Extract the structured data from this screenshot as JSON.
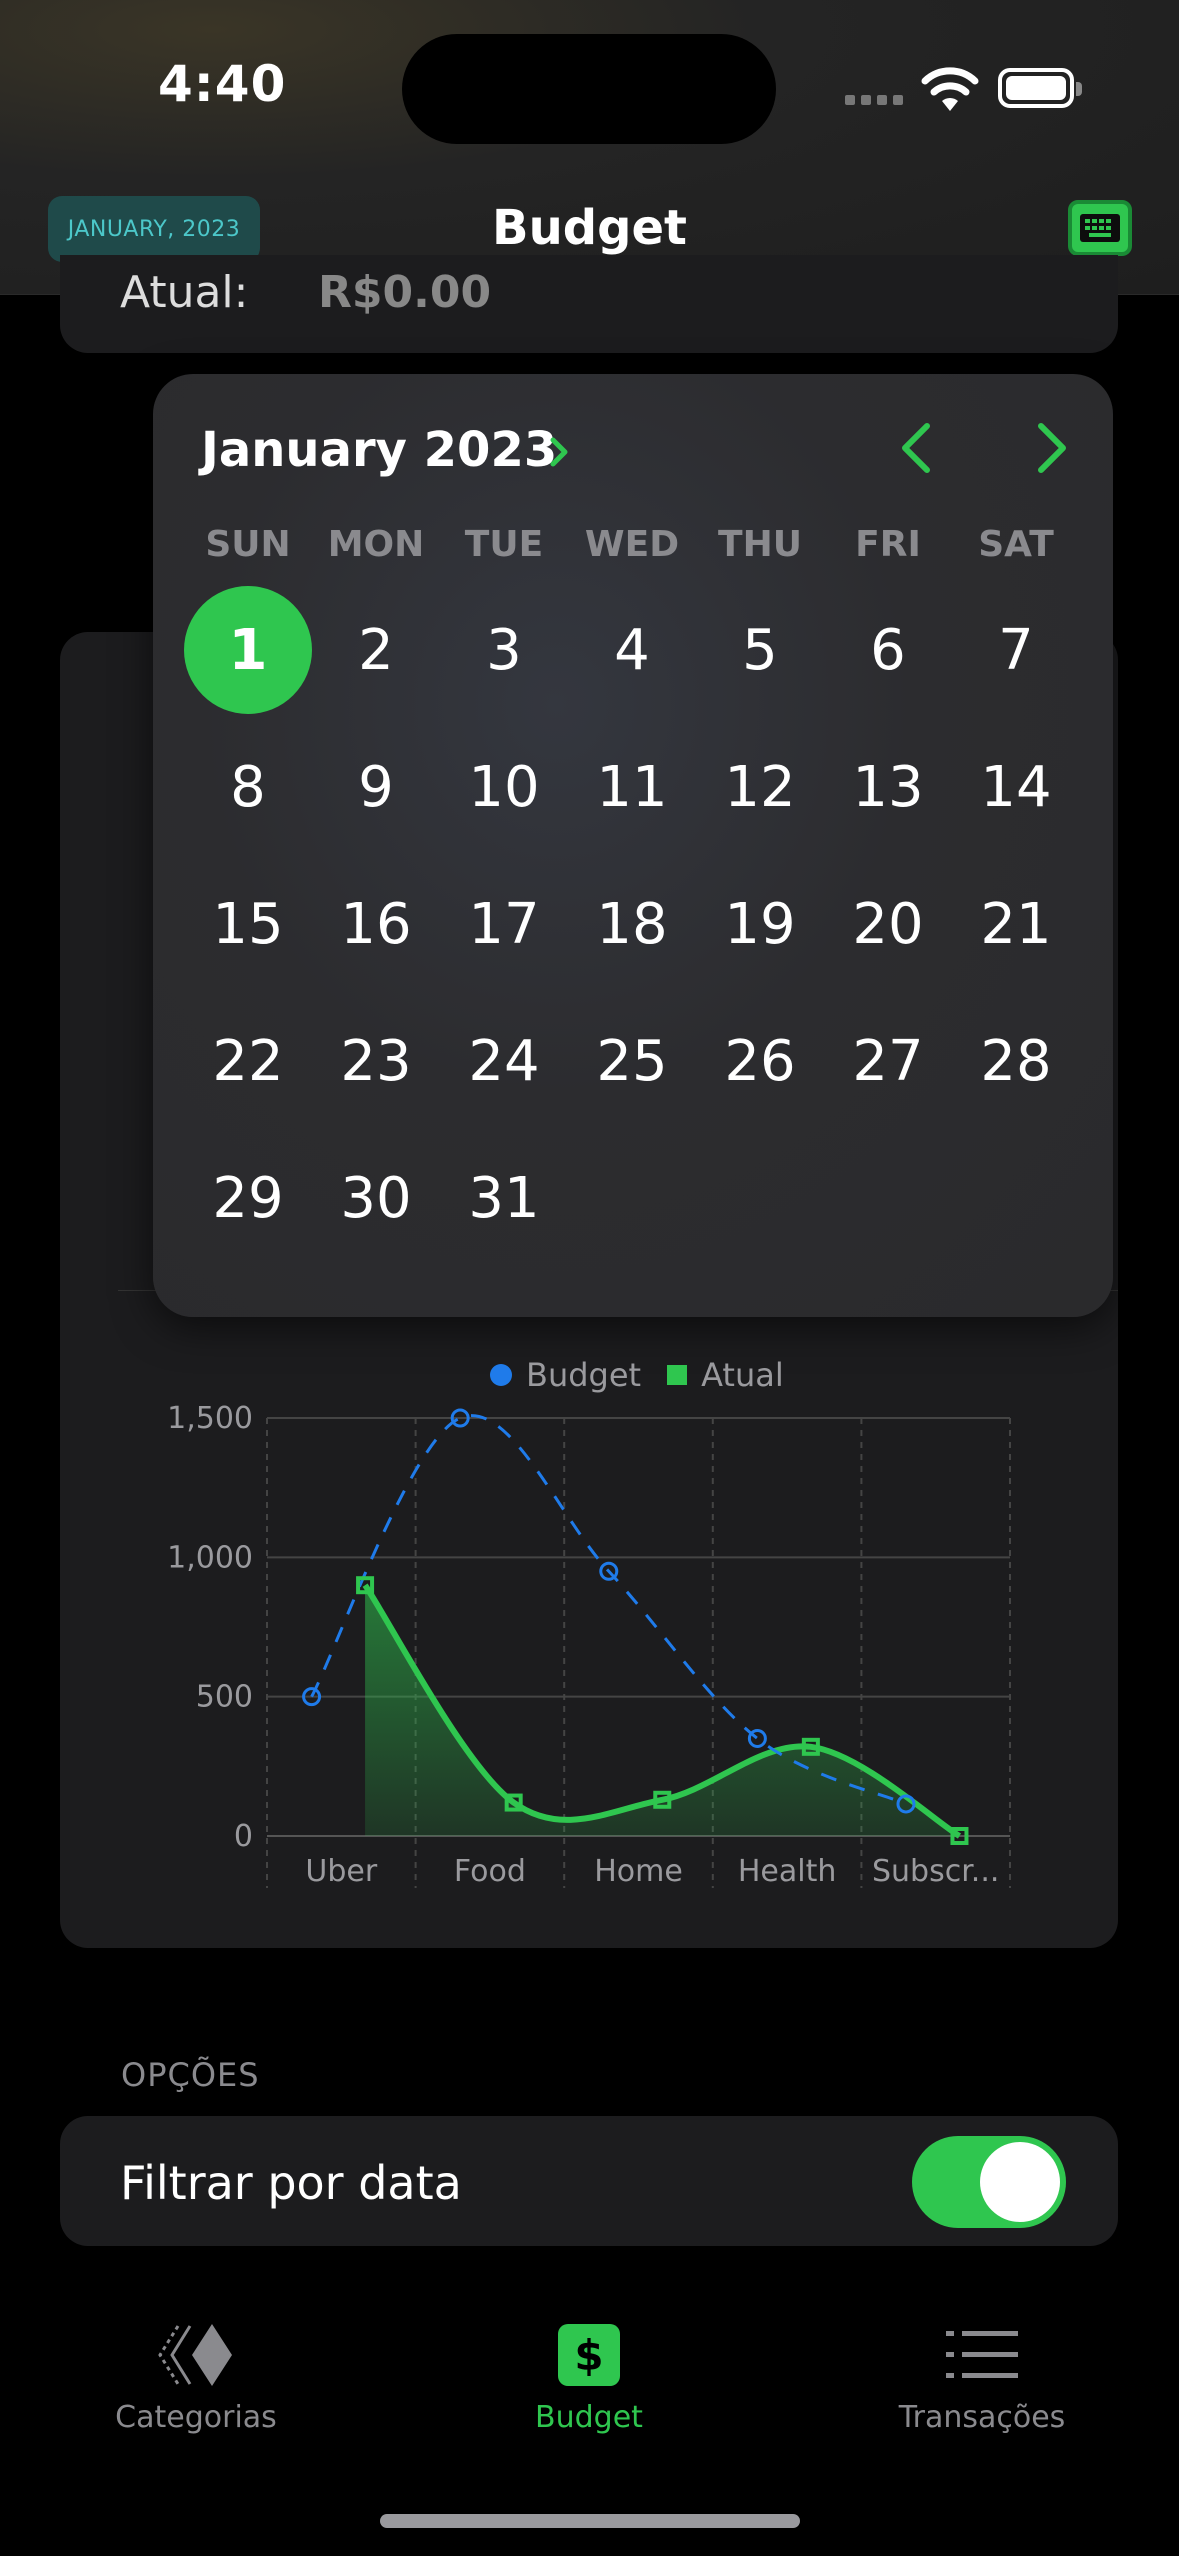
{
  "status_bar": {
    "time": "4:40"
  },
  "header": {
    "date_pill": "JANUARY, 2023",
    "title": "Budget"
  },
  "summary_card": {
    "label": "Atual:",
    "value": "R$0.00"
  },
  "calendar": {
    "month_label": "January 2023",
    "weekdays": [
      "SUN",
      "MON",
      "TUE",
      "WED",
      "THU",
      "FRI",
      "SAT"
    ],
    "selected_day": "1",
    "first_weekday_index": 0,
    "days": [
      "1",
      "2",
      "3",
      "4",
      "5",
      "6",
      "7",
      "8",
      "9",
      "10",
      "11",
      "12",
      "13",
      "14",
      "15",
      "16",
      "17",
      "18",
      "19",
      "20",
      "21",
      "22",
      "23",
      "24",
      "25",
      "26",
      "27",
      "28",
      "29",
      "30",
      "31"
    ]
  },
  "chart_data": {
    "type": "line",
    "categories": [
      "Uber",
      "Food",
      "Home",
      "Health",
      "Subscr..."
    ],
    "y_ticks": [
      "1,500",
      "1,000",
      "500",
      "0"
    ],
    "ylim": [
      0,
      1500
    ],
    "legend": [
      "Budget",
      "Atual"
    ],
    "series": [
      {
        "name": "Budget",
        "style": "dashed",
        "color": "#1f7bea",
        "points": [
          [
            0.3,
            500
          ],
          [
            1.3,
            1500
          ],
          [
            2.3,
            950
          ],
          [
            3.3,
            350
          ],
          [
            4.3,
            115
          ]
        ]
      },
      {
        "name": "Atual",
        "style": "smooth-area",
        "color": "#2fc64f",
        "points": [
          [
            0.66,
            900
          ],
          [
            1.66,
            120
          ],
          [
            2.66,
            130
          ],
          [
            3.66,
            320
          ],
          [
            4.66,
            0
          ]
        ]
      }
    ]
  },
  "options": {
    "section_label": "OPÇÕES",
    "filter_label": "Filtrar por data",
    "filter_on": true
  },
  "tabs": [
    {
      "label": "Categorias",
      "icon": "categories-icon",
      "active": false
    },
    {
      "label": "Budget",
      "icon": "dollar-icon",
      "active": true
    },
    {
      "label": "Transações",
      "icon": "list-icon",
      "active": false
    }
  ],
  "colors": {
    "accent": "#2fc64f",
    "budget_line": "#1f7bea",
    "pill_bg": "#1f4a4a",
    "pill_text": "#4cc7c9"
  }
}
